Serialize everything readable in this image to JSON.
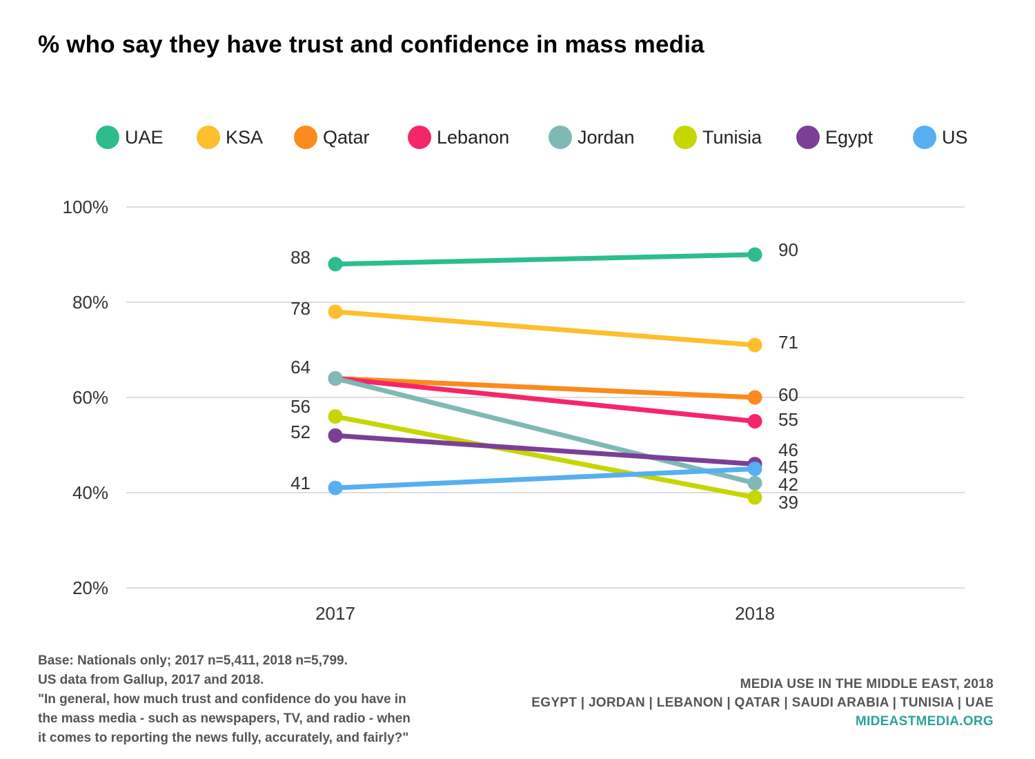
{
  "title": "% who say they have trust and confidence in mass media",
  "chart_data": {
    "type": "line",
    "title": "% who say they have trust and confidence in mass media",
    "x": [
      "2017",
      "2018"
    ],
    "y_ticks": [
      "20%",
      "40%",
      "60%",
      "80%",
      "100%"
    ],
    "ylim": [
      20,
      100
    ],
    "grid": true,
    "legend_position": "top",
    "series": [
      {
        "name": "UAE",
        "color": "#2dbd8c",
        "values": [
          88,
          90
        ],
        "labels": [
          "88",
          "90"
        ]
      },
      {
        "name": "KSA",
        "color": "#fdbf2d",
        "values": [
          78,
          71
        ],
        "labels": [
          "78",
          "71"
        ]
      },
      {
        "name": "Qatar",
        "color": "#fb8a1c",
        "values": [
          64,
          60
        ],
        "labels": [
          "64",
          "60"
        ]
      },
      {
        "name": "Lebanon",
        "color": "#f52668",
        "values": [
          64,
          55
        ],
        "labels": [
          "",
          "55"
        ]
      },
      {
        "name": "Jordan",
        "color": "#7fb9b6",
        "values": [
          64,
          42
        ],
        "labels": [
          "",
          "42"
        ]
      },
      {
        "name": "Tunisia",
        "color": "#c5d600",
        "values": [
          56,
          39
        ],
        "labels": [
          "56",
          "39"
        ]
      },
      {
        "name": "Egypt",
        "color": "#7b3f98",
        "values": [
          52,
          46
        ],
        "labels": [
          "52",
          "46"
        ]
      },
      {
        "name": "US",
        "color": "#56aff0",
        "values": [
          41,
          45
        ],
        "labels": [
          "41",
          "45"
        ]
      }
    ]
  },
  "footer": {
    "left_lines": [
      "Base: Nationals only; 2017 n=5,411, 2018 n=5,799.",
      "US data from Gallup, 2017 and 2018.",
      "\"In general, how much trust and confidence do you have in",
      "the mass media - such as newspapers, TV, and radio - when",
      "it comes to reporting the news fully, accurately, and fairly?\""
    ],
    "right_line1": "MEDIA USE IN THE MIDDLE EAST, 2018",
    "right_line2": "EGYPT | JORDAN | LEBANON | QATAR | SAUDI ARABIA | TUNISIA | UAE",
    "site": "MIDEASTMEDIA.ORG"
  }
}
